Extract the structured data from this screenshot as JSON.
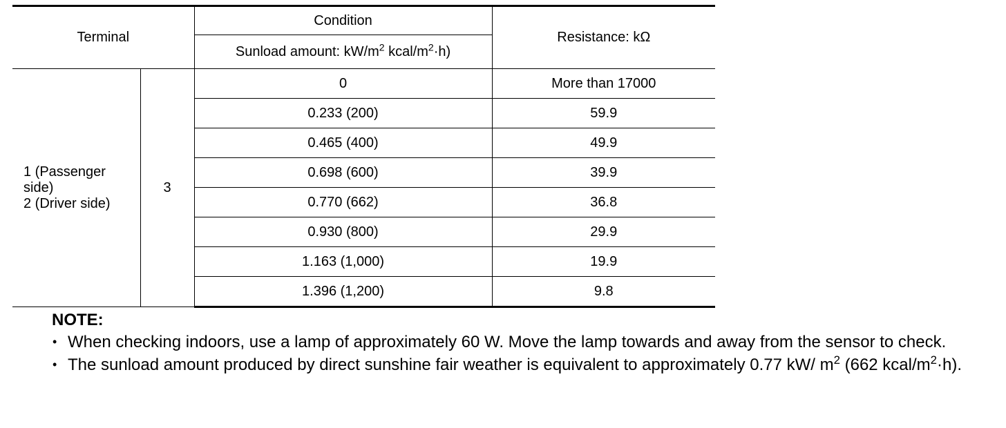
{
  "table": {
    "header": {
      "terminal": "Terminal",
      "condition": "Condition",
      "sunload_parts": [
        "Sunload amount: kW/m",
        "2",
        " kcal/m",
        "2",
        "·h)"
      ],
      "resistance": "Resistance: kΩ"
    },
    "terminal_lines": [
      "1 (Passenger side)",
      "2 (Driver side)"
    ],
    "terminal_2": "3",
    "rows": [
      [
        "0",
        "More than 17000"
      ],
      [
        "0.233 (200)",
        "59.9"
      ],
      [
        "0.465 (400)",
        "49.9"
      ],
      [
        "0.698 (600)",
        "39.9"
      ],
      [
        "0.770 (662)",
        "36.8"
      ],
      [
        "0.930 (800)",
        "29.9"
      ],
      [
        "1.163 (1,000)",
        "19.9"
      ],
      [
        "1.396 (1,200)",
        "9.8"
      ]
    ]
  },
  "note": {
    "title": "NOTE:",
    "items": [
      [
        "When checking indoors, use a lamp of approximately 60 W. Move the lamp towards and away from the sensor to check."
      ],
      [
        "The sunload amount produced by direct sunshine fair weather is equivalent to approximately 0.77 kW/ m",
        "2",
        " (662 kcal/m",
        "2",
        "·h)."
      ]
    ]
  }
}
